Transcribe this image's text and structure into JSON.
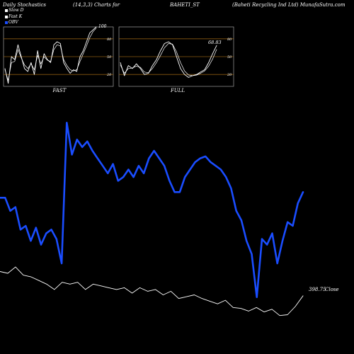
{
  "header": {
    "title": "Daily Stochastics",
    "params": "(14,3,3) Charts for",
    "symbol": "BAHETI_ST",
    "company": "(Baheti Recycling Ind Ltd) MunafaSutra.com"
  },
  "legend": [
    {
      "label": "Slow D",
      "color": "#ffffff"
    },
    {
      "label": "Fast K",
      "color": "#ffffff"
    },
    {
      "label": "OBV",
      "color": "#1a4dff"
    }
  ],
  "colors": {
    "background": "#000000",
    "obv": "#1a4dff",
    "close": "#ffffff",
    "grid": "#8a5a10"
  },
  "chart_data": [
    {
      "type": "line",
      "title": "FAST",
      "ylim": [
        0,
        100
      ],
      "y_ticks": [
        20,
        50,
        80
      ],
      "grid": true,
      "top_label": "100",
      "series": [
        {
          "name": "Fast K",
          "values": [
            30,
            5,
            50,
            45,
            70,
            50,
            30,
            25,
            40,
            20,
            60,
            30,
            55,
            45,
            40,
            70,
            75,
            72,
            40,
            30,
            22,
            28,
            25,
            50,
            60,
            75,
            90,
            95,
            100
          ]
        },
        {
          "name": "Slow D",
          "values": [
            28,
            10,
            40,
            42,
            62,
            48,
            36,
            30,
            38,
            28,
            52,
            38,
            50,
            44,
            42,
            62,
            70,
            68,
            45,
            35,
            28,
            26,
            28,
            42,
            55,
            68,
            82,
            92,
            98
          ]
        }
      ]
    },
    {
      "type": "line",
      "title": "FULL",
      "ylim": [
        0,
        100
      ],
      "y_ticks": [
        20,
        50,
        80
      ],
      "grid": true,
      "value_label": "68.83",
      "series": [
        {
          "name": "Full K",
          "values": [
            40,
            18,
            35,
            30,
            38,
            30,
            20,
            22,
            35,
            45,
            60,
            72,
            75,
            70,
            50,
            30,
            20,
            15,
            18,
            20,
            24,
            28,
            40,
            55,
            68.83
          ]
        },
        {
          "name": "Full D",
          "values": [
            36,
            22,
            30,
            31,
            34,
            32,
            24,
            23,
            30,
            40,
            52,
            65,
            72,
            71,
            58,
            40,
            26,
            19,
            18,
            19,
            22,
            26,
            34,
            46,
            62
          ]
        }
      ]
    },
    {
      "type": "line",
      "ylim": [
        0,
        1
      ],
      "series": [
        {
          "name": "OBV",
          "values": [
            0.55,
            0.55,
            0.48,
            0.5,
            0.38,
            0.4,
            0.32,
            0.39,
            0.3,
            0.36,
            0.38,
            0.33,
            0.2,
            0.95,
            0.78,
            0.86,
            0.82,
            0.85,
            0.8,
            0.76,
            0.72,
            0.68,
            0.73,
            0.64,
            0.66,
            0.7,
            0.66,
            0.72,
            0.68,
            0.76,
            0.8,
            0.76,
            0.72,
            0.64,
            0.58,
            0.58,
            0.66,
            0.7,
            0.74,
            0.76,
            0.77,
            0.74,
            0.72,
            0.7,
            0.66,
            0.6,
            0.48,
            0.43,
            0.32,
            0.25,
            0.02,
            0.33,
            0.3,
            0.36,
            0.2,
            0.32,
            0.42,
            0.4,
            0.52,
            0.58
          ]
        },
        {
          "name": "Close",
          "values": [
            0.5,
            0.48,
            0.55,
            0.46,
            0.44,
            0.4,
            0.36,
            0.3,
            0.38,
            0.36,
            0.38,
            0.3,
            0.36,
            0.34,
            0.32,
            0.3,
            0.32,
            0.26,
            0.32,
            0.28,
            0.3,
            0.24,
            0.28,
            0.2,
            0.22,
            0.24,
            0.2,
            0.17,
            0.14,
            0.18,
            0.1,
            0.09,
            0.06,
            0.1,
            0.05,
            0.08,
            0.01,
            0.02,
            0.11,
            0.23
          ]
        }
      ],
      "last_close_label": "398.75",
      "last_close_suffix": "Close"
    }
  ]
}
